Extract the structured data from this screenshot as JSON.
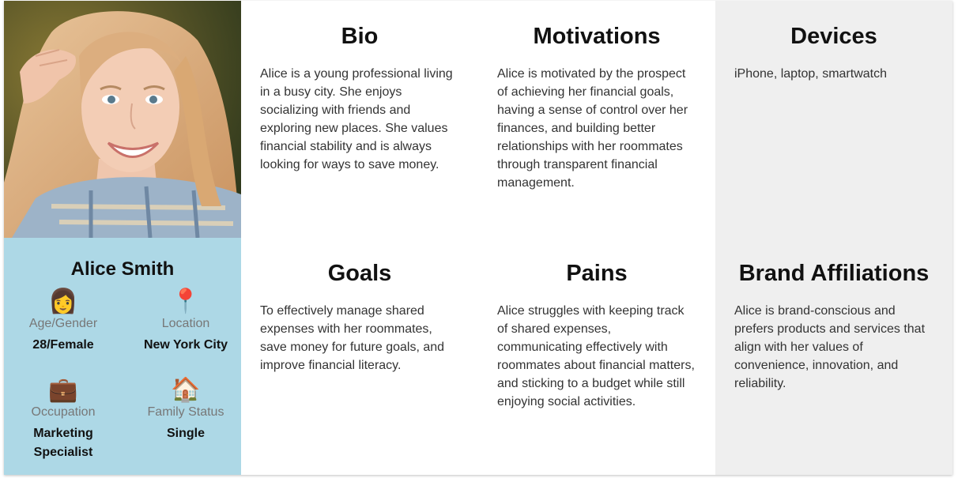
{
  "persona": {
    "name": "Alice Smith",
    "attributes": [
      {
        "icon": "woman-icon",
        "glyph": "👩",
        "label": "Age/Gender",
        "value": "28/Female"
      },
      {
        "icon": "pin-icon",
        "glyph": "📍",
        "label": "Location",
        "value": "New York City"
      },
      {
        "icon": "briefcase-icon",
        "glyph": "💼",
        "label": "Occupation",
        "value": "Marketing Specialist"
      },
      {
        "icon": "house-icon",
        "glyph": "🏠",
        "label": "Family Status",
        "value": "Single"
      }
    ]
  },
  "sections": {
    "bio": {
      "title": "Bio",
      "text": "Alice is a young professional living in a busy city. She enjoys socializing with friends and exploring new places. She values financial stability and is always looking for ways to save money."
    },
    "motivations": {
      "title": "Motivations",
      "text": "Alice is motivated by the prospect of achieving her financial goals, having a sense of control over her finances, and building better relationships with her roommates through transparent financial management."
    },
    "devices": {
      "title": "Devices",
      "text": "iPhone, laptop, smartwatch"
    },
    "goals": {
      "title": "Goals",
      "text": "To effectively manage shared expenses with her roommates, save money for future goals, and improve financial literacy."
    },
    "pains": {
      "title": "Pains",
      "text": "Alice struggles with keeping track of shared expenses, communicating effectively with roommates about financial matters, and sticking to a budget while still enjoying social activities."
    },
    "brand_affiliations": {
      "title": "Brand Affiliations",
      "text": "Alice is brand-conscious and prefers products and services that align with her values of convenience, innovation, and reliability."
    }
  },
  "colors": {
    "profile_bg": "#add8e6",
    "gray_cell_bg": "#efefef"
  }
}
